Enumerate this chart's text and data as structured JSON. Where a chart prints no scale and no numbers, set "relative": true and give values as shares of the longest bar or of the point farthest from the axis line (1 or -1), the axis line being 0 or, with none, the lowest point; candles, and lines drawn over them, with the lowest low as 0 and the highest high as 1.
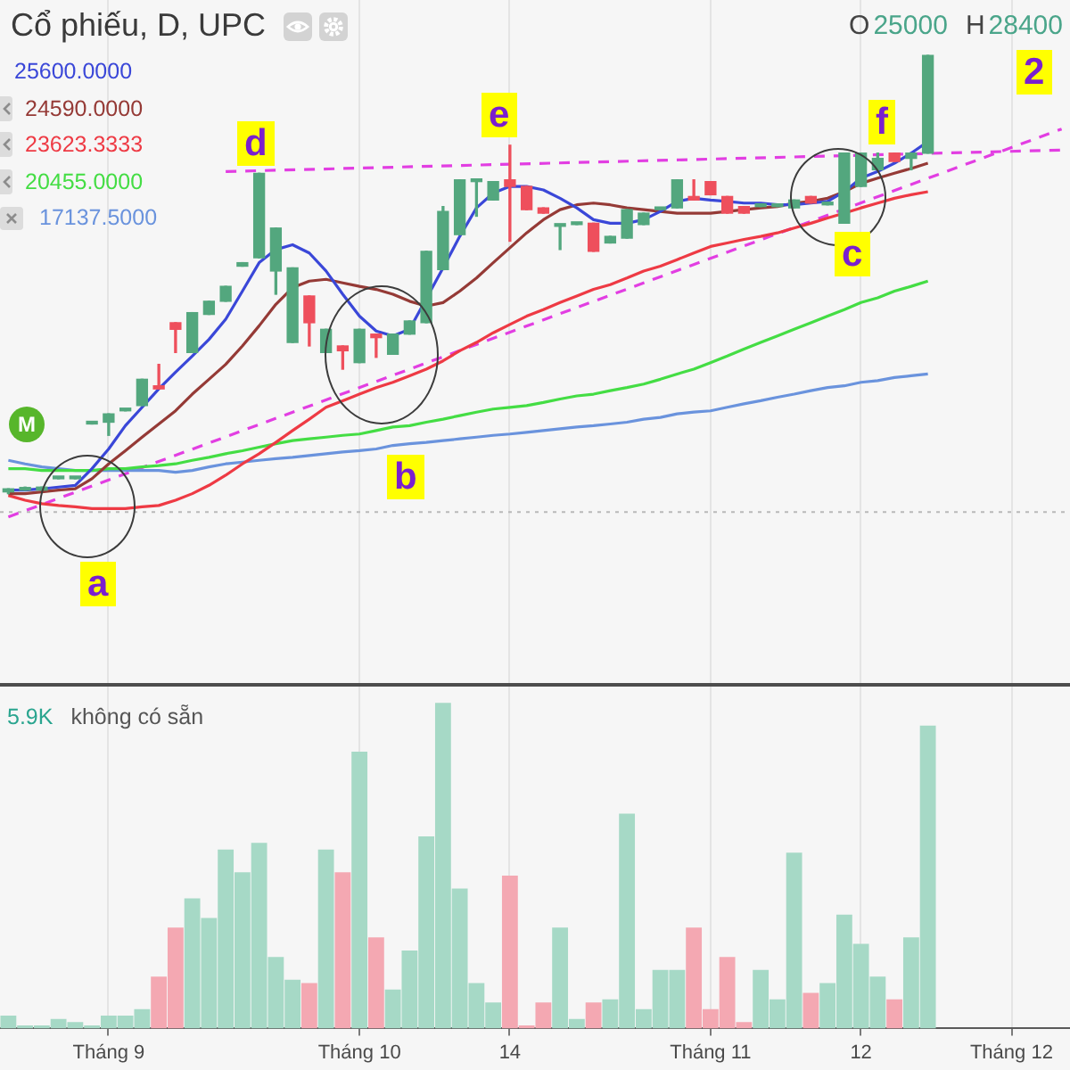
{
  "chart_data": [
    {
      "type": "candlestick",
      "title": "Cổ phiếu, D, UPC",
      "relative": true,
      "legend": "top left",
      "tick_labels": false,
      "grid": "x",
      "categories": [
        null,
        null,
        null,
        null,
        null,
        null,
        null,
        null,
        null,
        null,
        null,
        null,
        null,
        null,
        null,
        null,
        null,
        null,
        null,
        null,
        null,
        null,
        null,
        null,
        null,
        null,
        null,
        null,
        null,
        null,
        null,
        null,
        null,
        null,
        null,
        null,
        null,
        null,
        null,
        null,
        null,
        null,
        null,
        null,
        null,
        null,
        null,
        null,
        null,
        null,
        null,
        null,
        null,
        null,
        null,
        null,
        null,
        null,
        null,
        null,
        null,
        null,
        null,
        null
      ],
      "ohlc": [
        [
          0.004,
          0.011,
          0,
          0.011
        ],
        [
          0.008,
          0.015,
          0.008,
          0.011
        ],
        [
          0.008,
          0.015,
          0.008,
          0.015
        ],
        [
          0.034,
          0.038,
          0.034,
          0.038
        ],
        [
          0.034,
          0.038,
          0.034,
          0.038
        ],
        [
          0.159,
          0.163,
          0.159,
          0.163
        ],
        [
          0.163,
          0.182,
          0.133,
          0.182
        ],
        [
          0.189,
          0.193,
          0.189,
          0.193
        ],
        [
          0.201,
          0.261,
          0.201,
          0.261
        ],
        [
          0.246,
          0.295,
          0.239,
          0.239
        ],
        [
          0.39,
          0.39,
          0.322,
          0.375
        ],
        [
          0.322,
          0.413,
          0.322,
          0.413
        ],
        [
          0.409,
          0.439,
          0.409,
          0.439
        ],
        [
          0.439,
          0.473,
          0.439,
          0.473
        ],
        [
          0.519,
          0.527,
          0.519,
          0.527
        ],
        [
          0.538,
          0.731,
          0.538,
          0.731
        ],
        [
          0.508,
          0.606,
          0.455,
          0.606
        ],
        [
          0.345,
          0.515,
          0.345,
          0.515
        ],
        [
          0.451,
          0.451,
          0.337,
          0.39
        ],
        [
          0.322,
          0.375,
          0.322,
          0.375
        ],
        [
          0.337,
          0.337,
          0.284,
          0.326
        ],
        [
          0.299,
          0.375,
          0.299,
          0.375
        ],
        [
          0.364,
          0.364,
          0.311,
          0.356
        ],
        [
          0.318,
          0.364,
          0.318,
          0.364
        ],
        [
          0.364,
          0.394,
          0.364,
          0.394
        ],
        [
          0.39,
          0.553,
          0.39,
          0.553
        ],
        [
          0.511,
          0.655,
          0.511,
          0.644
        ],
        [
          0.591,
          0.716,
          0.591,
          0.716
        ],
        [
          0.712,
          0.716,
          0.633,
          0.716
        ],
        [
          0.67,
          0.712,
          0.67,
          0.712
        ],
        [
          0.716,
          0.795,
          0.576,
          0.701
        ],
        [
          0.701,
          0.701,
          0.648,
          0.648
        ],
        [
          0.652,
          0.652,
          0.64,
          0.64
        ],
        [
          0.61,
          0.614,
          0.557,
          0.614
        ],
        [
          0.614,
          0.617,
          0.614,
          0.617
        ],
        [
          0.617,
          0.617,
          0.553,
          0.553
        ],
        [
          0.572,
          0.587,
          0.572,
          0.587
        ],
        [
          0.583,
          0.648,
          0.583,
          0.648
        ],
        [
          0.614,
          0.64,
          0.614,
          0.64
        ],
        [
          0.648,
          0.652,
          0.648,
          0.652
        ],
        [
          0.652,
          0.716,
          0.652,
          0.716
        ],
        [
          0.678,
          0.716,
          0.67,
          0.67
        ],
        [
          0.712,
          0.712,
          0.682,
          0.682
        ],
        [
          0.678,
          0.678,
          0.64,
          0.64
        ],
        [
          0.655,
          0.655,
          0.64,
          0.64
        ],
        [
          0.655,
          0.659,
          0.655,
          0.659
        ],
        [
          0.655,
          0.659,
          0.655,
          0.659
        ],
        [
          0.652,
          0.67,
          0.652,
          0.67
        ],
        [
          0.678,
          0.678,
          0.663,
          0.663
        ],
        [
          0.659,
          0.663,
          0.659,
          0.663
        ],
        [
          0.617,
          0.777,
          0.617,
          0.777
        ],
        [
          0.701,
          0.777,
          0.701,
          0.777
        ],
        [
          0.739,
          0.777,
          0.739,
          0.765
        ],
        [
          0.777,
          0.777,
          0.758,
          0.758
        ],
        [
          0.765,
          0.777,
          0.739,
          0.777
        ],
        [
          0.777,
          1,
          0.777,
          1
        ],
        null,
        null,
        null,
        null,
        null,
        null,
        null,
        null
      ],
      "colors": [
        "#53a77e",
        "#53a77e",
        "#53a77e",
        "#53a77e",
        "#53a77e",
        "#53a77e",
        "#53a77e",
        "#53a77e",
        "#53a77e",
        "#ee4f5c",
        "#ee4f5c",
        "#53a77e",
        "#53a77e",
        "#53a77e",
        "#53a77e",
        "#53a77e",
        "#53a77e",
        "#53a77e",
        "#ee4f5c",
        "#53a77e",
        "#ee4f5c",
        "#53a77e",
        "#ee4f5c",
        "#53a77e",
        "#53a77e",
        "#53a77e",
        "#53a77e",
        "#53a77e",
        "#53a77e",
        "#53a77e",
        "#ee4f5c",
        "#ee4f5c",
        "#ee4f5c",
        "#53a77e",
        "#53a77e",
        "#ee4f5c",
        "#53a77e",
        "#53a77e",
        "#53a77e",
        "#53a77e",
        "#53a77e",
        "#ee4f5c",
        "#ee4f5c",
        "#ee4f5c",
        "#ee4f5c",
        "#53a77e",
        "#53a77e",
        "#53a77e",
        "#ee4f5c",
        "#53a77e",
        "#53a77e",
        "#53a77e",
        "#53a77e",
        "#ee4f5c",
        "#53a77e",
        "#53a77e",
        null,
        null,
        null,
        null,
        null,
        null,
        null,
        null
      ],
      "series": [
        {
          "type": "line",
          "name": "25600.0000",
          "color": "#3a47d8",
          "values": [
            0.008,
            0.008,
            0.011,
            0.015,
            0.019,
            0.057,
            0.102,
            0.155,
            0.197,
            0.239,
            0.277,
            0.314,
            0.352,
            0.398,
            0.462,
            0.527,
            0.557,
            0.568,
            0.549,
            0.508,
            0.455,
            0.405,
            0.371,
            0.36,
            0.375,
            null,
            0.515,
            0.587,
            0.652,
            0.686,
            0.701,
            0.701,
            0.693,
            0.674,
            0.652,
            0.625,
            0.617,
            0.617,
            0.625,
            0.644,
            0.667,
            0.674,
            0.67,
            0.667,
            0.663,
            0.663,
            0.659,
            0.659,
            0.663,
            0.667,
            0.689,
            0.72,
            0.735,
            0.754,
            0.777,
            0.803,
            null,
            null,
            null,
            null,
            null,
            null,
            null,
            null
          ]
        },
        {
          "type": "line",
          "name": "24590.0000",
          "color": "#953a36",
          "values": [
            0,
            0,
            0.004,
            0.008,
            0.011,
            0.034,
            0.068,
            0.098,
            0.129,
            0.159,
            0.189,
            0.227,
            0.261,
            0.295,
            0.337,
            0.383,
            0.432,
            0.47,
            0.485,
            0.489,
            0.481,
            0.473,
            0.466,
            0.455,
            0.439,
            0.428,
            0.436,
            0.462,
            0.492,
            0.527,
            0.561,
            0.595,
            0.625,
            0.648,
            0.659,
            0.663,
            0.659,
            0.652,
            0.648,
            0.644,
            0.64,
            0.64,
            0.64,
            0.644,
            0.648,
            0.652,
            0.655,
            0.663,
            0.667,
            0.674,
            0.689,
            0.708,
            0.72,
            0.731,
            0.742,
            0.754,
            null,
            null,
            null,
            null,
            null,
            null,
            null,
            null
          ]
        },
        {
          "type": "line",
          "name": "23623.3333",
          "color": "#ee3a44",
          "values": [
            -0.004,
            -0.015,
            -0.023,
            -0.027,
            -0.03,
            -0.034,
            -0.034,
            -0.034,
            -0.03,
            -0.027,
            -0.015,
            0,
            0.019,
            0.042,
            0.068,
            0.091,
            0.117,
            0.144,
            0.17,
            0.197,
            0.212,
            0.227,
            0.242,
            0.254,
            0.269,
            0.284,
            0.303,
            0.326,
            0.345,
            0.367,
            0.386,
            0.405,
            0.42,
            0.436,
            0.451,
            0.466,
            0.477,
            0.492,
            0.508,
            0.519,
            0.534,
            0.549,
            0.564,
            0.572,
            0.58,
            0.587,
            0.595,
            0.606,
            0.617,
            0.629,
            0.64,
            0.652,
            0.663,
            0.674,
            0.682,
            0.689,
            null,
            null,
            null,
            null,
            null,
            null,
            null,
            null
          ]
        },
        {
          "type": "line",
          "name": "20455.0000",
          "color": "#44dd44",
          "values": [
            0.057,
            0.057,
            0.053,
            0.053,
            0.053,
            0.053,
            0.057,
            0.057,
            0.061,
            0.064,
            0.068,
            0.076,
            0.083,
            0.091,
            0.098,
            0.106,
            0.114,
            0.121,
            0.125,
            0.129,
            0.133,
            0.136,
            0.144,
            0.152,
            0.155,
            0.163,
            0.17,
            0.178,
            0.186,
            0.193,
            0.197,
            0.201,
            0.208,
            0.216,
            0.223,
            0.227,
            0.235,
            0.242,
            0.25,
            0.261,
            0.273,
            0.284,
            0.299,
            0.314,
            0.33,
            0.345,
            0.36,
            0.375,
            0.39,
            0.405,
            0.42,
            0.436,
            0.447,
            0.462,
            0.473,
            0.485,
            null,
            null,
            null,
            null,
            null,
            null,
            null,
            null
          ]
        },
        {
          "type": "line",
          "name": "17137.5000",
          "color": "#6a93dd",
          "values": [
            0.076,
            0.068,
            0.061,
            0.057,
            0.053,
            0.053,
            0.053,
            0.053,
            0.053,
            0.053,
            0.049,
            0.053,
            0.061,
            0.068,
            0.072,
            0.076,
            0.08,
            0.083,
            0.087,
            0.091,
            0.095,
            0.098,
            0.102,
            0.11,
            0.114,
            0.117,
            0.121,
            0.125,
            0.129,
            0.133,
            0.136,
            0.14,
            0.144,
            0.148,
            0.152,
            0.155,
            0.159,
            0.163,
            0.17,
            0.174,
            0.182,
            0.186,
            0.189,
            0.197,
            0.205,
            0.212,
            0.22,
            0.227,
            0.235,
            0.242,
            0.246,
            0.254,
            0.258,
            0.265,
            0.269,
            0.273,
            null,
            null,
            null,
            null,
            null,
            null,
            null,
            null
          ]
        },
        {
          "type": "line",
          "color": "#e23ee2",
          "line_style": "dashed",
          "values": [
            null,
            null,
            null,
            null,
            null,
            null,
            null,
            null,
            null,
            null,
            null,
            null,
            null,
            0.735,
            null,
            null,
            null,
            null,
            null,
            null,
            null,
            null,
            null,
            null,
            null,
            null,
            null,
            null,
            null,
            null,
            null,
            null,
            null,
            null,
            null,
            null,
            null,
            null,
            null,
            null,
            null,
            null,
            null,
            null,
            null,
            null,
            null,
            null,
            null,
            null,
            null,
            null,
            null,
            null,
            null,
            null,
            null,
            null,
            null,
            null,
            null,
            null,
            null,
            0.784
          ]
        },
        {
          "type": "line",
          "color": "#e23ee2",
          "line_style": "dashed",
          "values": [
            -0.053,
            null,
            null,
            null,
            null,
            null,
            null,
            null,
            null,
            null,
            null,
            null,
            null,
            null,
            null,
            null,
            null,
            null,
            null,
            null,
            null,
            null,
            null,
            null,
            null,
            null,
            null,
            null,
            null,
            null,
            null,
            null,
            null,
            null,
            null,
            null,
            null,
            null,
            null,
            null,
            null,
            null,
            null,
            null,
            null,
            null,
            null,
            null,
            null,
            null,
            null,
            null,
            null,
            null,
            null,
            null,
            null,
            null,
            null,
            null,
            null,
            null,
            null,
            0.832
          ]
        }
      ],
      "ref_lines": [
        {
          "axis": "y",
          "value": -0.042,
          "color": "#b9b9b9",
          "line_style": "dotted"
        }
      ],
      "annotations": [
        "a",
        "b",
        "c",
        "d",
        "e",
        "f",
        "2",
        "M",
        "O",
        "25000",
        "H",
        "28400"
      ]
    },
    {
      "type": "bar",
      "relative": true,
      "tick_labels": "x",
      "grid": "x",
      "categories": [
        null,
        null,
        null,
        null,
        null,
        null,
        "Tháng 9",
        null,
        null,
        null,
        null,
        null,
        null,
        null,
        null,
        null,
        null,
        null,
        null,
        null,
        null,
        "Tháng 10",
        null,
        null,
        null,
        null,
        null,
        null,
        null,
        null,
        "14",
        null,
        null,
        null,
        null,
        null,
        null,
        null,
        null,
        null,
        null,
        null,
        "Tháng 11",
        null,
        null,
        null,
        null,
        null,
        null,
        null,
        null,
        "12",
        null,
        null,
        null,
        null,
        null,
        null,
        null,
        null,
        "Tháng 12",
        null,
        null,
        null
      ],
      "values": [
        0.04,
        0.01,
        0.01,
        0.03,
        0.02,
        0.01,
        0.04,
        0.04,
        0.06,
        0.16,
        0.31,
        0.4,
        0.34,
        0.55,
        0.48,
        0.57,
        0.22,
        0.15,
        0.14,
        0.55,
        0.48,
        0.85,
        0.28,
        0.12,
        0.24,
        0.59,
        1,
        0.43,
        0.14,
        0.08,
        0.47,
        0.01,
        0.08,
        0.31,
        0.03,
        0.08,
        0.09,
        0.66,
        0.06,
        0.18,
        0.18,
        0.31,
        0.06,
        0.22,
        0.02,
        0.18,
        0.09,
        0.54,
        0.11,
        0.14,
        0.35,
        0.26,
        0.16,
        0.09,
        0.28,
        0.93,
        null,
        null,
        null,
        null,
        null,
        null,
        null,
        null
      ],
      "colors": [
        "#a6d9c6",
        "#a6d9c6",
        "#a6d9c6",
        "#a6d9c6",
        "#a6d9c6",
        "#a6d9c6",
        "#a6d9c6",
        "#a6d9c6",
        "#a6d9c6",
        "#f4a8b2",
        "#f4a8b2",
        "#a6d9c6",
        "#a6d9c6",
        "#a6d9c6",
        "#a6d9c6",
        "#a6d9c6",
        "#a6d9c6",
        "#a6d9c6",
        "#f4a8b2",
        "#a6d9c6",
        "#f4a8b2",
        "#a6d9c6",
        "#f4a8b2",
        "#a6d9c6",
        "#a6d9c6",
        "#a6d9c6",
        "#a6d9c6",
        "#a6d9c6",
        "#a6d9c6",
        "#a6d9c6",
        "#f4a8b2",
        "#f4a8b2",
        "#f4a8b2",
        "#a6d9c6",
        "#a6d9c6",
        "#f4a8b2",
        "#a6d9c6",
        "#a6d9c6",
        "#a6d9c6",
        "#a6d9c6",
        "#a6d9c6",
        "#f4a8b2",
        "#f4a8b2",
        "#f4a8b2",
        "#f4a8b2",
        "#a6d9c6",
        "#a6d9c6",
        "#a6d9c6",
        "#f4a8b2",
        "#a6d9c6",
        "#a6d9c6",
        "#a6d9c6",
        "#a6d9c6",
        "#f4a8b2",
        "#a6d9c6",
        "#a6d9c6",
        null,
        null,
        null,
        null,
        null,
        null,
        null,
        null
      ],
      "annotations": [
        "5.9K",
        "không có sẵn"
      ]
    }
  ]
}
